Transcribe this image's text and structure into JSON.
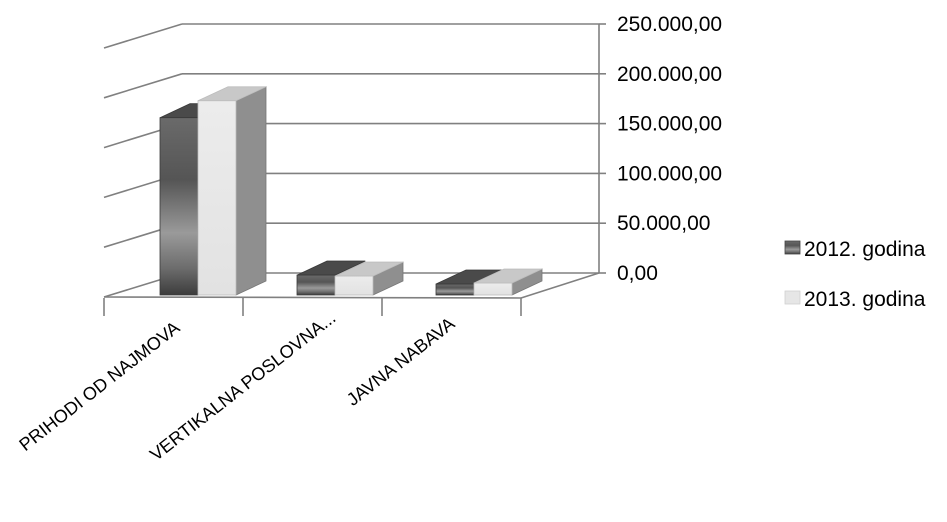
{
  "chart_data": {
    "type": "bar",
    "style": "3d-clustered",
    "categories": [
      "PRIHODI OD NAJMOVA",
      "VERTIKALNA POSLOVNA...",
      "JAVNA NABAVA"
    ],
    "series": [
      {
        "name": "2012. godina",
        "values": [
          178000,
          20000,
          11000
        ]
      },
      {
        "name": "2013. godina",
        "values": [
          195000,
          19000,
          12000
        ]
      }
    ],
    "yticks": [
      "0,00",
      "50.000,00",
      "100.000,00",
      "150.000,00",
      "200.000,00",
      "250.000,00"
    ],
    "ylim": [
      0,
      250000
    ],
    "grid": true,
    "legend_position": "right",
    "colors": {
      "series_2012": "#666666",
      "series_2013": "#e6e6e6",
      "grid": "#808080"
    }
  }
}
